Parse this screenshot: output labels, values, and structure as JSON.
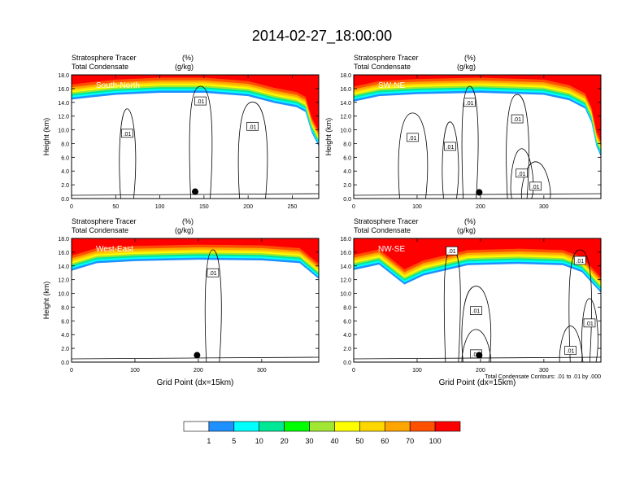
{
  "title": "2014-02-27_18:00:00",
  "chart_data": [
    {
      "type": "heatmap",
      "panel_label": "South-North",
      "left_label_1": "Stratosphere Tracer",
      "right_label_1": "(%)",
      "left_label_2": "Total Condensate",
      "right_label_2": "(g/kg)",
      "ylabel": "Height (km)",
      "xlabel": "",
      "xlim": [
        0,
        280
      ],
      "ylim": [
        0,
        18
      ],
      "xticks": [
        0,
        50,
        100,
        150,
        200,
        250
      ],
      "yticks": [
        "0.0",
        "2.0",
        "4.0",
        "6.0",
        "8.0",
        "10.0",
        "12.0",
        "14.0",
        "16.0",
        "18.0"
      ],
      "tracer_base_km": [
        [
          0,
          15.3
        ],
        [
          20,
          15.6
        ],
        [
          50,
          16.0
        ],
        [
          100,
          16.3
        ],
        [
          150,
          16.3
        ],
        [
          200,
          15.8
        ],
        [
          230,
          14.8
        ],
        [
          255,
          14.2
        ],
        [
          265,
          13.5
        ],
        [
          272,
          10.5
        ],
        [
          280,
          8.5
        ]
      ],
      "contour_labels": [
        {
          "text": ".01",
          "x": 63,
          "y": 9.5
        },
        {
          "text": ".01",
          "x": 146,
          "y": 14.2
        },
        {
          "text": ".01",
          "x": 205,
          "y": 10.5
        }
      ],
      "marker": {
        "x": 140,
        "y": 1.0
      }
    },
    {
      "type": "heatmap",
      "panel_label": "SW-NE",
      "left_label_1": "Stratosphere Tracer",
      "right_label_1": "(%)",
      "left_label_2": "Total Condensate",
      "right_label_2": "(g/kg)",
      "ylabel": "Height (km)",
      "xlabel": "",
      "xlim": [
        0,
        390
      ],
      "ylim": [
        0,
        18
      ],
      "xticks": [
        0,
        100,
        200,
        300
      ],
      "yticks": [
        "0.0",
        "2.0",
        "4.0",
        "6.0",
        "8.0",
        "10.0",
        "12.0",
        "14.0",
        "16.0",
        "18.0"
      ],
      "tracer_base_km": [
        [
          0,
          15.0
        ],
        [
          40,
          15.8
        ],
        [
          100,
          16.1
        ],
        [
          200,
          16.3
        ],
        [
          300,
          16.0
        ],
        [
          340,
          15.2
        ],
        [
          365,
          14.0
        ],
        [
          375,
          12.0
        ],
        [
          383,
          8.5
        ],
        [
          390,
          7.0
        ]
      ],
      "contour_labels": [
        {
          "text": ".01",
          "x": 183,
          "y": 14.0
        },
        {
          "text": ".01",
          "x": 258,
          "y": 11.6
        },
        {
          "text": ".01",
          "x": 93,
          "y": 8.9
        },
        {
          "text": ".01",
          "x": 152,
          "y": 7.6
        },
        {
          "text": ".01",
          "x": 265,
          "y": 3.7
        },
        {
          "text": ".01",
          "x": 287,
          "y": 1.8
        }
      ],
      "marker": {
        "x": 198,
        "y": 0.9
      }
    },
    {
      "type": "heatmap",
      "panel_label": "West-East",
      "left_label_1": "Stratosphere Tracer",
      "right_label_1": "(%)",
      "left_label_2": "Total Condensate",
      "right_label_2": "(g/kg)",
      "ylabel": "Height (km)",
      "xlabel": "Grid Point (dx=15km)",
      "xlim": [
        0,
        390
      ],
      "ylim": [
        0,
        18
      ],
      "xticks": [
        0,
        100,
        200,
        300
      ],
      "yticks": [
        "0.0",
        "2.0",
        "4.0",
        "6.0",
        "8.0",
        "10.0",
        "12.0",
        "14.0",
        "16.0",
        "18.0"
      ],
      "tracer_base_km": [
        [
          0,
          14.2
        ],
        [
          40,
          15.3
        ],
        [
          100,
          15.6
        ],
        [
          200,
          15.8
        ],
        [
          300,
          15.7
        ],
        [
          360,
          15.3
        ],
        [
          390,
          13.0
        ]
      ],
      "contour_labels": [
        {
          "text": ".01",
          "x": 223,
          "y": 13.0
        }
      ],
      "marker": {
        "x": 198,
        "y": 1.0
      }
    },
    {
      "type": "heatmap",
      "panel_label": "NW-SE",
      "left_label_1": "Stratosphere Tracer",
      "right_label_1": "(%)",
      "left_label_2": "Total Condensate",
      "right_label_2": "(g/kg)",
      "ylabel": "",
      "xlabel": "Grid Point (dx=15km)",
      "xlim": [
        0,
        390
      ],
      "ylim": [
        0,
        18
      ],
      "xticks": [
        0,
        100,
        200,
        300
      ],
      "yticks": [
        "0.0",
        "2.0",
        "4.0",
        "6.0",
        "8.0",
        "10.0",
        "12.0",
        "14.0",
        "16.0",
        "18.0"
      ],
      "tracer_base_km": [
        [
          0,
          14.3
        ],
        [
          40,
          15.1
        ],
        [
          80,
          12.2
        ],
        [
          110,
          13.5
        ],
        [
          180,
          15.0
        ],
        [
          260,
          15.2
        ],
        [
          330,
          15.0
        ],
        [
          360,
          14.0
        ],
        [
          390,
          11.0
        ]
      ],
      "contour_labels": [
        {
          "text": ".01",
          "x": 155,
          "y": 16.2
        },
        {
          "text": ".01",
          "x": 357,
          "y": 14.8
        },
        {
          "text": ".01",
          "x": 193,
          "y": 7.5
        },
        {
          "text": ".01",
          "x": 372,
          "y": 5.7
        },
        {
          "text": ".01",
          "x": 342,
          "y": 1.7
        },
        {
          "text": ".01",
          "x": 193,
          "y": 1.2
        }
      ],
      "marker": {
        "x": 198,
        "y": 1.0
      },
      "note": "Total Condensate Contours: .01 to .01 by .000"
    }
  ],
  "colorbar": {
    "colors": [
      "#ffffff",
      "#1e90ff",
      "#00ffff",
      "#00e896",
      "#00ff00",
      "#a0e632",
      "#ffff00",
      "#ffd700",
      "#ffa500",
      "#ff5000",
      "#ff0000"
    ],
    "labels": [
      "1",
      "5",
      "10",
      "20",
      "30",
      "40",
      "50",
      "60",
      "70",
      "100"
    ]
  }
}
